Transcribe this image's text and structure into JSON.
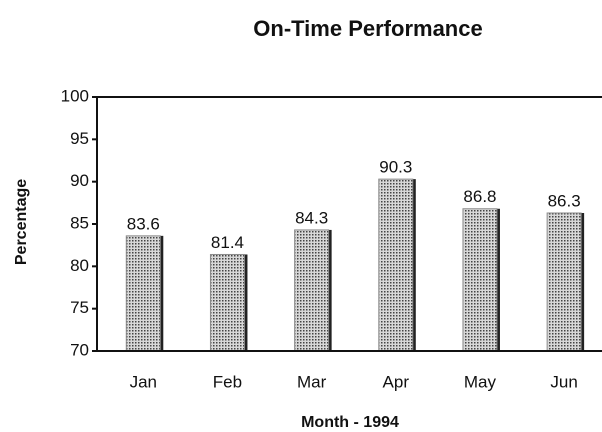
{
  "chart_data": {
    "type": "bar",
    "title": "On-Time Performance",
    "x_label": "Month - 1994",
    "y_label": "Percentage",
    "categories": [
      "Jan",
      "Feb",
      "Mar",
      "Apr",
      "May",
      "Jun"
    ],
    "values": [
      83.6,
      81.4,
      84.3,
      90.3,
      86.8,
      86.3
    ],
    "color": "#8a8a8a",
    "ylim": [
      70,
      100
    ],
    "yticks": [
      70,
      75,
      80,
      85,
      90,
      95,
      100
    ],
    "grid": false
  }
}
